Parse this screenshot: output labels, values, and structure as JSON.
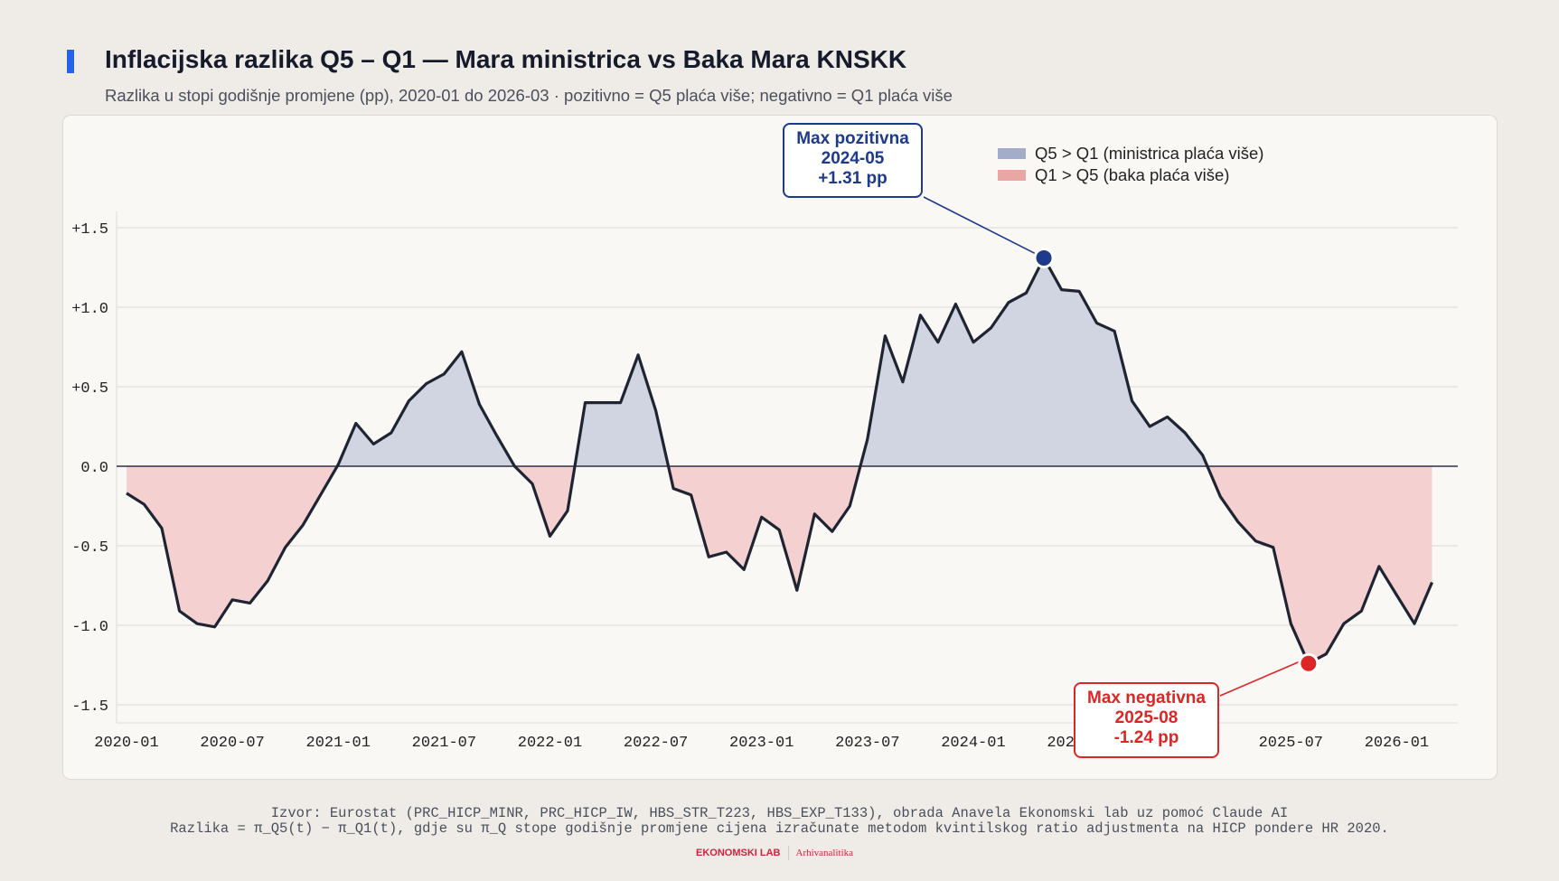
{
  "header": {
    "title": "Inflacijska razlika Q5 – Q1 — Mara ministrica vs Baka Mara KNSKK",
    "subtitle": "Razlika u stopi godišnje promjene (pp), 2020-01 do 2026-03 · pozitivno = Q5 plaća više; negativno = Q1 plaća više",
    "accent_color": "#2563eb"
  },
  "legend": [
    {
      "label": "Q5 > Q1 (ministrica plaća više)",
      "color": "#a3adc9"
    },
    {
      "label": "Q1 > Q5 (baka plaća više)",
      "color": "#eaa5a5"
    }
  ],
  "annotations": {
    "max_positive": {
      "title": "Max pozitivna",
      "date": "2024-05",
      "value_label": "+1.31 pp",
      "color": "#1e3a8a"
    },
    "max_negative": {
      "title": "Max negativna",
      "date": "2025-08",
      "value_label": "-1.24 pp",
      "color": "#dc2626"
    }
  },
  "chart_data": {
    "type": "area",
    "title": "Inflacijska razlika Q5 – Q1 — Mara ministrica vs Baka Mara KNSKK",
    "xlabel": "",
    "ylabel": "",
    "ylim": [
      -1.6,
      1.6
    ],
    "grid": true,
    "legend_placement": "top-right",
    "y_ticks": [
      1.5,
      1.0,
      0.5,
      0.0,
      -0.5,
      -1.0,
      -1.5
    ],
    "y_tick_labels": [
      "+1.5",
      "+1.0",
      "+0.5",
      "0.0",
      "-0.5",
      "-1.0",
      "-1.5"
    ],
    "x_tick_labels": [
      "2020-01",
      "2020-07",
      "2021-01",
      "2021-07",
      "2022-01",
      "2022-07",
      "2023-01",
      "2023-07",
      "2024-01",
      "2024-07",
      "2025-01",
      "2025-07",
      "2026-01"
    ],
    "start": "2020-01",
    "end": "2026-03",
    "positive_color": "#d1d4e1",
    "negative_color": "#f4d1d0",
    "line_color": "#1f2433",
    "values": [
      -0.17,
      -0.24,
      -0.39,
      -0.91,
      -0.99,
      -1.01,
      -0.84,
      -0.86,
      -0.72,
      -0.51,
      -0.37,
      -0.18,
      0.01,
      0.27,
      0.14,
      0.21,
      0.41,
      0.52,
      0.58,
      0.72,
      0.39,
      0.19,
      0.0,
      -0.11,
      -0.44,
      -0.28,
      0.4,
      0.4,
      0.4,
      0.7,
      0.35,
      -0.14,
      -0.18,
      -0.57,
      -0.54,
      -0.65,
      -0.32,
      -0.4,
      -0.78,
      -0.3,
      -0.41,
      -0.25,
      0.17,
      0.82,
      0.53,
      0.95,
      0.78,
      1.02,
      0.78,
      0.87,
      1.03,
      1.09,
      1.31,
      1.11,
      1.1,
      0.9,
      0.85,
      0.41,
      0.25,
      0.31,
      0.21,
      0.07,
      -0.19,
      -0.35,
      -0.47,
      -0.51,
      -0.99,
      -1.24,
      -1.18,
      -0.99,
      -0.91,
      -0.63,
      -0.81,
      -0.99,
      -0.73
    ]
  },
  "footer": {
    "source": "Izvor: Eurostat (PRC_HICP_MINR, PRC_HICP_IW, HBS_STR_T223, HBS_EXP_T133), obrada Anavela Ekonomski lab uz pomoć Claude AI",
    "note": "Razlika = π_Q5(t) − π_Q1(t), gdje su π_Q stope godišnje promjene cijena izračunate metodom kvintilskog ratio adjustmenta na HICP pondere HR 2020.",
    "logo_main": "EKONOMSKI LAB",
    "logo_sub": "Arhivanalitika"
  }
}
